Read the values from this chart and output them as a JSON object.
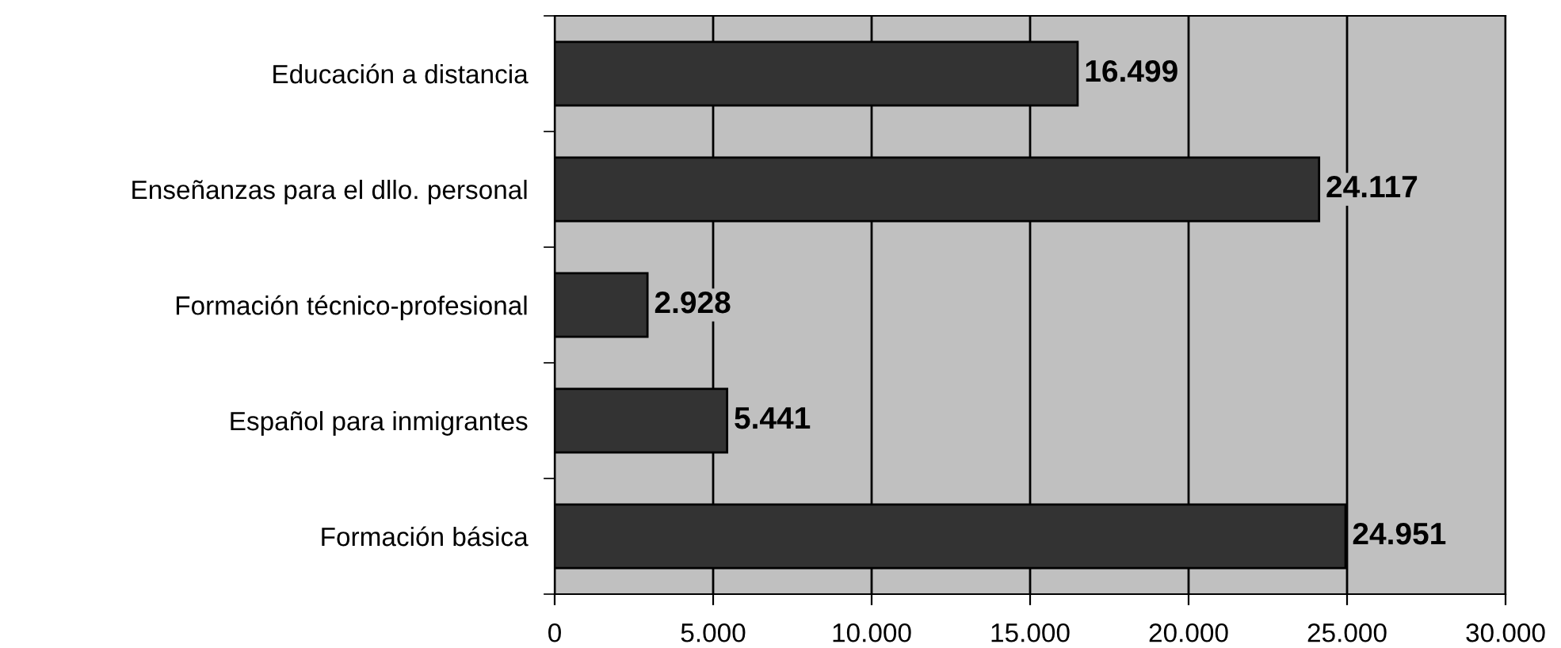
{
  "chart_data": {
    "type": "bar",
    "orientation": "horizontal",
    "categories": [
      "Educación a distancia",
      "Enseñanzas para el dllo. personal",
      "Formación técnico-profesional",
      "Español para inmigrantes",
      "Formación básica"
    ],
    "values": [
      16499,
      24117,
      2928,
      5441,
      24951
    ],
    "value_labels": [
      "16.499",
      "24.117",
      "2.928",
      "5.441",
      "24.951"
    ],
    "color": "#333333",
    "xlim": [
      0,
      30000
    ],
    "xticks": [
      0,
      {
        "value": 5000,
        "label": "5.000"
      },
      {
        "value": 10000,
        "label": "10.000"
      },
      {
        "value": 15000,
        "label": "15.000"
      },
      {
        "value": 20000,
        "label": "20.000"
      },
      {
        "value": 25000,
        "label": "25.000"
      },
      {
        "value": 30000,
        "label": "30.000"
      }
    ],
    "grid": "x",
    "legend": false
  }
}
